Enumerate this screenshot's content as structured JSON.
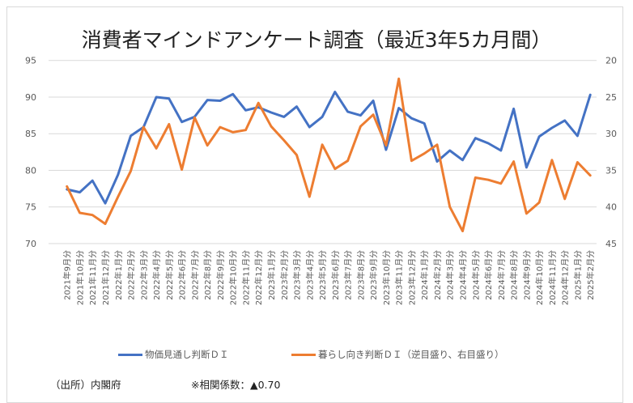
{
  "chart_data": {
    "type": "line",
    "title": "消費者マインドアンケート調査（最近3年5カ月間）",
    "xlabel": "",
    "ylabel_left": "",
    "ylabel_right": "",
    "x": [
      "2021年9月分",
      "2021年10月分",
      "2021年11月分",
      "2021年12月分",
      "2022年1月分",
      "2022年2月分",
      "2022年3月分",
      "2022年4月分",
      "2022年5月分",
      "2022年6月分",
      "2022年7月分",
      "2022年8月分",
      "2022年9月分",
      "2022年10月分",
      "2022年11月分",
      "2022年12月分",
      "2023年1月分",
      "2023年2月分",
      "2023年3月分",
      "2023年4月分",
      "2023年5月分",
      "2023年6月分",
      "2023年7月分",
      "2023年8月分",
      "2023年9月分",
      "2023年10月分",
      "2023年11月分",
      "2023年12月分",
      "2024年1月分",
      "2024年2月分",
      "2024年3月分",
      "2024年4月分",
      "2024年5月分",
      "2024年6月分",
      "2024年7月分",
      "2024年8月分",
      "2024年9月分",
      "2024年10月分",
      "2024年11月分",
      "2024年12月分",
      "2025年1月分",
      "2025年2月分"
    ],
    "left_axis": {
      "range": [
        70,
        95
      ],
      "ticks": [
        "70",
        "75",
        "80",
        "85",
        "90",
        "95"
      ]
    },
    "right_axis": {
      "range": [
        20,
        45
      ],
      "inverted": true,
      "ticks": [
        "20",
        "25",
        "30",
        "35",
        "40",
        "45"
      ]
    },
    "grid": true,
    "legend_position": "bottom",
    "series": [
      {
        "name": "物価見通し判断ＤＩ",
        "axis": "left",
        "color": "#4472C4",
        "values": [
          77.4,
          77.0,
          78.6,
          75.5,
          79.4,
          84.7,
          85.9,
          90.0,
          89.8,
          86.6,
          87.3,
          89.6,
          89.5,
          90.4,
          88.2,
          88.6,
          87.9,
          87.3,
          88.7,
          85.9,
          87.3,
          90.7,
          88.0,
          87.5,
          89.5,
          82.8,
          88.5,
          87.1,
          86.4,
          81.2,
          82.7,
          81.4,
          84.4,
          83.7,
          82.7,
          88.4,
          80.4,
          84.6,
          85.8,
          86.8,
          84.7,
          90.3
        ]
      },
      {
        "name": "暮らし向き判断ＤＩ（逆目盛り、右目盛り）",
        "axis": "right",
        "color": "#ED7D31",
        "values": [
          37.2,
          40.8,
          41.1,
          42.3,
          38.6,
          35.1,
          29.1,
          32.0,
          28.7,
          34.9,
          27.8,
          31.6,
          29.1,
          29.8,
          29.5,
          25.8,
          29.0,
          30.9,
          32.9,
          38.6,
          31.5,
          34.8,
          33.7,
          29.0,
          27.4,
          31.6,
          22.5,
          33.7,
          32.7,
          31.5,
          40.0,
          43.3,
          36.0,
          36.3,
          36.8,
          33.8,
          40.9,
          39.4,
          33.6,
          38.9,
          33.9,
          35.7
        ]
      }
    ]
  },
  "legend": {
    "items": [
      {
        "label": "物価見通し判断ＤＩ",
        "color": "#4472C4"
      },
      {
        "label": "暮らし向き判断ＤＩ（逆目盛り、右目盛り）",
        "color": "#ED7D31"
      }
    ]
  },
  "footer": {
    "source": "（出所）内閣府",
    "correlation": "※相関係数：▲0.70"
  }
}
